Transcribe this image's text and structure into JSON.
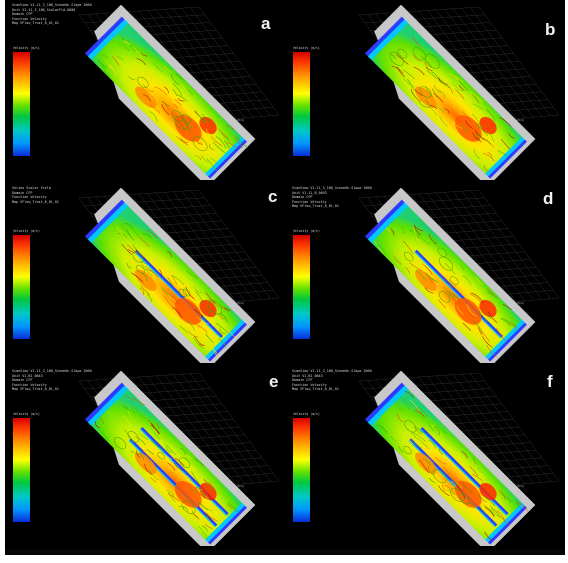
{
  "panels": [
    {
      "label": "a",
      "header": [
        "ScanView V1.11_3_180_SceneOn-Slope 2600",
        "Unit    V1.11_3_180_ScalarFld-0000",
        "Domain   CFP",
        "Function Velocity",
        "Map     VFlow_Trust_8_01_01"
      ],
      "legend_title": "Velocity (m/s)",
      "baffles": 0
    },
    {
      "label": "b",
      "header": [],
      "legend_title": "Velocity (m/s)",
      "baffles": 0
    },
    {
      "label": "c",
      "header": [
        "Series   Scalar Field",
        "Domain   CFP",
        "Function Velocity",
        "Map     VFlow_Trust_8_01_01"
      ],
      "legend_title": "Velocity (m/s)",
      "baffles": 1
    },
    {
      "label": "d",
      "header": [
        "ScanView V1.11_3_180_SceneOn-Slope 2600",
        "Unit    V1.11_B_0643",
        "Domain   CFP",
        "Function Velocity",
        "Map     VFlow_Trust_8_01_01"
      ],
      "legend_title": "Velocity (m/s)",
      "baffles": 1
    },
    {
      "label": "e",
      "header": [
        "ScanView V1.11_3_180_SceneOn-Slope 2600",
        "Unit    V1.B1_0843",
        "Domain   CFP",
        "Function Velocity",
        "Map     VFlow_Trust_8_01_01"
      ],
      "legend_title": "Velocity (m/s)",
      "baffles": 2
    },
    {
      "label": "f",
      "header": [
        "ScanView V1.11_3_180_SceneOn-Slope 2600",
        "Unit    V1.B1_0843",
        "Domain   CFP",
        "Function Velocity",
        "Map     VFlow_Trust_8_01_01"
      ],
      "legend_title": "Velocity (m/s)",
      "baffles": 2
    }
  ],
  "legend_ticks": [
    "",
    "",
    "",
    "",
    ""
  ],
  "axis_label": "Z(m)",
  "colors": {
    "background": "#000000",
    "wall": "#c8c8c8",
    "slot": "#2b3cff",
    "letter": "#f2f2f2"
  }
}
